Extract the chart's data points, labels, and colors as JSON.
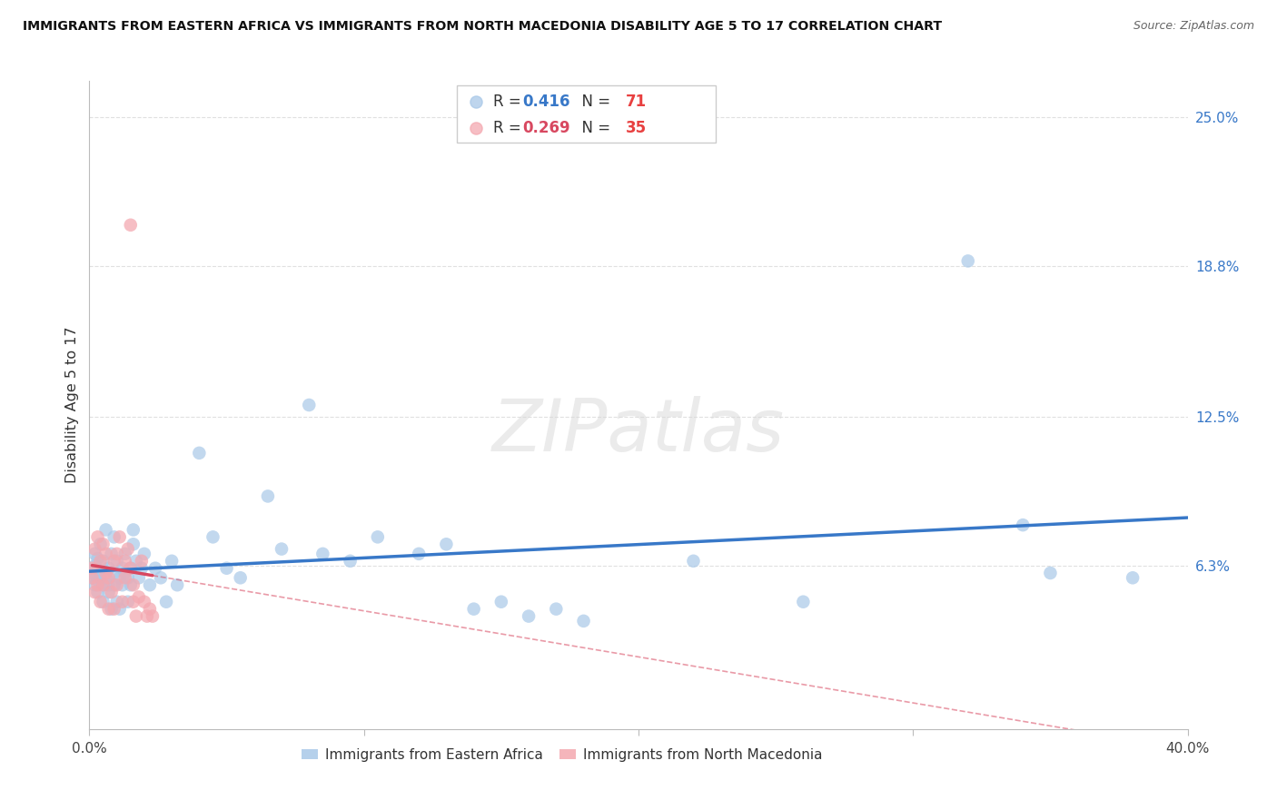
{
  "title": "IMMIGRANTS FROM EASTERN AFRICA VS IMMIGRANTS FROM NORTH MACEDONIA DISABILITY AGE 5 TO 17 CORRELATION CHART",
  "source": "Source: ZipAtlas.com",
  "ylabel": "Disability Age 5 to 17",
  "xlim": [
    0.0,
    0.4
  ],
  "ylim": [
    -0.005,
    0.265
  ],
  "xticks": [
    0.0,
    0.1,
    0.2,
    0.3,
    0.4
  ],
  "xtick_labels": [
    "0.0%",
    "",
    "",
    "",
    "40.0%"
  ],
  "ytick_labels_right": [
    "6.3%",
    "12.5%",
    "18.8%",
    "25.0%"
  ],
  "ytick_vals_right": [
    0.063,
    0.125,
    0.188,
    0.25
  ],
  "R_blue": 0.416,
  "N_blue": 71,
  "R_pink": 0.269,
  "N_pink": 35,
  "blue_color": "#a8c8e8",
  "pink_color": "#f4a8b0",
  "blue_line_color": "#3878c8",
  "pink_line_color": "#d84860",
  "N_color": "#e84040",
  "blue_scatter": [
    [
      0.001,
      0.06
    ],
    [
      0.001,
      0.058
    ],
    [
      0.002,
      0.063
    ],
    [
      0.002,
      0.055
    ],
    [
      0.002,
      0.068
    ],
    [
      0.003,
      0.057
    ],
    [
      0.003,
      0.066
    ],
    [
      0.003,
      0.052
    ],
    [
      0.004,
      0.06
    ],
    [
      0.004,
      0.058
    ],
    [
      0.004,
      0.072
    ],
    [
      0.005,
      0.055
    ],
    [
      0.005,
      0.065
    ],
    [
      0.005,
      0.048
    ],
    [
      0.006,
      0.058
    ],
    [
      0.006,
      0.078
    ],
    [
      0.007,
      0.055
    ],
    [
      0.007,
      0.062
    ],
    [
      0.007,
      0.052
    ],
    [
      0.008,
      0.068
    ],
    [
      0.008,
      0.045
    ],
    [
      0.009,
      0.06
    ],
    [
      0.009,
      0.075
    ],
    [
      0.009,
      0.055
    ],
    [
      0.01,
      0.048
    ],
    [
      0.01,
      0.065
    ],
    [
      0.011,
      0.058
    ],
    [
      0.011,
      0.045
    ],
    [
      0.012,
      0.062
    ],
    [
      0.012,
      0.055
    ],
    [
      0.013,
      0.068
    ],
    [
      0.013,
      0.06
    ],
    [
      0.014,
      0.058
    ],
    [
      0.014,
      0.048
    ],
    [
      0.015,
      0.062
    ],
    [
      0.015,
      0.055
    ],
    [
      0.016,
      0.078
    ],
    [
      0.016,
      0.072
    ],
    [
      0.017,
      0.065
    ],
    [
      0.018,
      0.058
    ],
    [
      0.019,
      0.062
    ],
    [
      0.02,
      0.068
    ],
    [
      0.022,
      0.055
    ],
    [
      0.024,
      0.062
    ],
    [
      0.026,
      0.058
    ],
    [
      0.028,
      0.048
    ],
    [
      0.03,
      0.065
    ],
    [
      0.032,
      0.055
    ],
    [
      0.04,
      0.11
    ],
    [
      0.045,
      0.075
    ],
    [
      0.05,
      0.062
    ],
    [
      0.055,
      0.058
    ],
    [
      0.065,
      0.092
    ],
    [
      0.07,
      0.07
    ],
    [
      0.08,
      0.13
    ],
    [
      0.085,
      0.068
    ],
    [
      0.095,
      0.065
    ],
    [
      0.105,
      0.075
    ],
    [
      0.12,
      0.068
    ],
    [
      0.13,
      0.072
    ],
    [
      0.14,
      0.045
    ],
    [
      0.15,
      0.048
    ],
    [
      0.16,
      0.042
    ],
    [
      0.17,
      0.045
    ],
    [
      0.18,
      0.04
    ],
    [
      0.22,
      0.065
    ],
    [
      0.26,
      0.048
    ],
    [
      0.32,
      0.19
    ],
    [
      0.34,
      0.08
    ],
    [
      0.35,
      0.06
    ],
    [
      0.38,
      0.058
    ]
  ],
  "pink_scatter": [
    [
      0.001,
      0.058
    ],
    [
      0.001,
      0.062
    ],
    [
      0.002,
      0.07
    ],
    [
      0.002,
      0.052
    ],
    [
      0.003,
      0.075
    ],
    [
      0.003,
      0.055
    ],
    [
      0.004,
      0.065
    ],
    [
      0.004,
      0.048
    ],
    [
      0.005,
      0.072
    ],
    [
      0.005,
      0.055
    ],
    [
      0.006,
      0.068
    ],
    [
      0.006,
      0.06
    ],
    [
      0.007,
      0.045
    ],
    [
      0.007,
      0.058
    ],
    [
      0.008,
      0.052
    ],
    [
      0.009,
      0.065
    ],
    [
      0.009,
      0.045
    ],
    [
      0.01,
      0.068
    ],
    [
      0.01,
      0.055
    ],
    [
      0.011,
      0.075
    ],
    [
      0.012,
      0.048
    ],
    [
      0.013,
      0.065
    ],
    [
      0.013,
      0.058
    ],
    [
      0.014,
      0.07
    ],
    [
      0.015,
      0.062
    ],
    [
      0.016,
      0.055
    ],
    [
      0.017,
      0.042
    ],
    [
      0.018,
      0.05
    ],
    [
      0.019,
      0.065
    ],
    [
      0.02,
      0.048
    ],
    [
      0.021,
      0.042
    ],
    [
      0.022,
      0.045
    ],
    [
      0.023,
      0.042
    ],
    [
      0.015,
      0.205
    ],
    [
      0.016,
      0.048
    ]
  ],
  "watermark": "ZIPatlas",
  "background_color": "#ffffff",
  "grid_color": "#e0e0e0"
}
